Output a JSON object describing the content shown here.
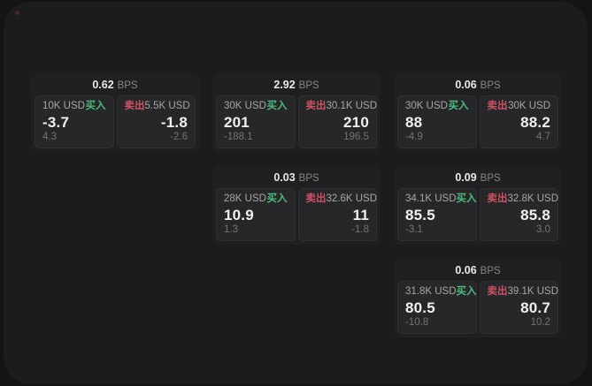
{
  "labels": {
    "bps_unit": "BPS",
    "buy": "买入",
    "sell": "卖出"
  },
  "colors": {
    "window_bg": "#1c1c1e",
    "card_bg": "#202023",
    "panel_bg": "#27272a",
    "buy_green": "#4cbd7d",
    "sell_red": "#cf5164"
  },
  "cards": [
    {
      "col": "1",
      "row": "1",
      "bps": "0.62",
      "buy": {
        "amount": "10K USD",
        "value": "-3.7",
        "sub": "4.3"
      },
      "sell": {
        "amount": "5.5K USD",
        "value": "-1.8",
        "sub": "-2.6"
      }
    },
    {
      "col": "2",
      "row": "1",
      "bps": "2.92",
      "buy": {
        "amount": "30K USD",
        "value": "201",
        "sub": "-188.1"
      },
      "sell": {
        "amount": "30.1K USD",
        "value": "210",
        "sub": "196.5"
      }
    },
    {
      "col": "3",
      "row": "1",
      "bps": "0.06",
      "buy": {
        "amount": "30K USD",
        "value": "88",
        "sub": "-4.9"
      },
      "sell": {
        "amount": "30K USD",
        "value": "88.2",
        "sub": "4.7"
      }
    },
    {
      "col": "2",
      "row": "2",
      "bps": "0.03",
      "buy": {
        "amount": "28K USD",
        "value": "10.9",
        "sub": "1.3"
      },
      "sell": {
        "amount": "32.6K USD",
        "value": "11",
        "sub": "-1.8"
      }
    },
    {
      "col": "3",
      "row": "2",
      "bps": "0.09",
      "buy": {
        "amount": "34.1K USD",
        "value": "85.5",
        "sub": "-3.1"
      },
      "sell": {
        "amount": "32.8K USD",
        "value": "85.8",
        "sub": "3.0"
      }
    },
    {
      "col": "3",
      "row": "3",
      "bps": "0.06",
      "buy": {
        "amount": "31.8K USD",
        "value": "80.5",
        "sub": "-10.8"
      },
      "sell": {
        "amount": "39.1K USD",
        "value": "80.7",
        "sub": "10.2"
      }
    }
  ]
}
